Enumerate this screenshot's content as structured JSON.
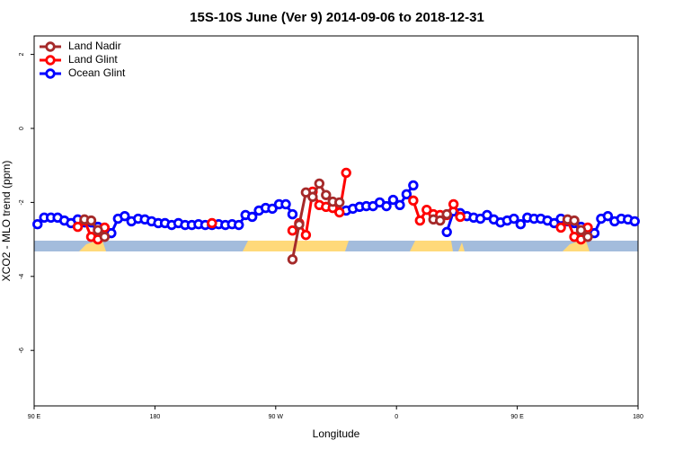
{
  "chart_data": {
    "type": "line",
    "title": "15S-10S June (Ver 9)   2014-09-06 to 2018-12-31",
    "x_label": "Longitude",
    "y_label": "XCO2 - MLO trend (ppm)",
    "xlim": [
      90,
      540
    ],
    "ylim": [
      -7.5,
      2.5
    ],
    "xticks": [
      {
        "value": 90,
        "label": "90 E"
      },
      180,
      {
        "value": 270,
        "label": "90 W"
      },
      {
        "value": 360,
        "label": "0"
      },
      {
        "value": 450,
        "label": "90 E"
      },
      {
        "value": 540,
        "label": "180"
      }
    ],
    "yticks": [
      -6,
      -4,
      -2,
      0,
      2
    ],
    "legend": "top-left",
    "x": [
      92.5,
      97.5,
      102.5,
      107.5,
      112.5,
      117.5,
      122.5,
      127.5,
      132.5,
      137.5,
      142.5,
      147.5,
      152.5,
      157.5,
      162.5,
      167.5,
      172.5,
      177.5,
      182.5,
      187.5,
      192.5,
      197.5,
      202.5,
      207.5,
      212.5,
      217.5,
      222.5,
      227.5,
      232.5,
      237.5,
      242.5,
      247.5,
      252.5,
      257.5,
      262.5,
      267.5,
      272.5,
      277.5,
      282.5,
      287.5,
      292.5,
      297.5,
      302.5,
      307.5,
      312.5,
      317.5,
      322.5,
      327.5,
      332.5,
      337.5,
      342.5,
      347.5,
      352.5,
      357.5,
      362.5,
      367.5,
      372.5,
      377.5,
      382.5,
      387.5,
      392.5,
      397.5,
      402.5,
      407.5,
      412.5,
      417.5,
      422.5,
      427.5,
      432.5,
      437.5,
      442.5,
      447.5,
      452.5,
      457.5,
      462.5,
      467.5,
      472.5,
      477.5,
      482.5,
      487.5,
      492.5,
      497.5,
      502.5,
      507.5,
      512.5,
      517.5,
      522.5,
      527.5,
      532.5,
      537.5
    ],
    "series": [
      {
        "name": "Land Nadir",
        "color": "#a52a2a",
        "values": [
          null,
          null,
          null,
          null,
          null,
          null,
          null,
          -2.46,
          -2.49,
          -2.75,
          -2.93,
          null,
          null,
          null,
          null,
          null,
          null,
          null,
          null,
          null,
          null,
          null,
          null,
          null,
          null,
          null,
          null,
          null,
          null,
          null,
          null,
          null,
          null,
          null,
          null,
          null,
          null,
          null,
          -3.54,
          -2.6,
          -1.73,
          -1.85,
          -1.49,
          -1.8,
          -1.98,
          -2.0,
          null,
          null,
          null,
          null,
          null,
          null,
          null,
          null,
          null,
          null,
          null,
          null,
          null,
          -2.46,
          -2.49,
          -2.32,
          null,
          null,
          null,
          null,
          null,
          null,
          null,
          null,
          null,
          null,
          null,
          null,
          null,
          null,
          null,
          null,
          null,
          -2.46,
          -2.49,
          -2.75,
          -2.93,
          null,
          null,
          null,
          null,
          null,
          null,
          null
        ]
      },
      {
        "name": "Land Glint",
        "color": "#ff0000",
        "values": [
          null,
          null,
          null,
          null,
          null,
          null,
          -2.66,
          -2.49,
          -2.93,
          -3.0,
          -2.68,
          null,
          null,
          null,
          null,
          null,
          null,
          null,
          null,
          null,
          null,
          null,
          null,
          null,
          null,
          null,
          -2.56,
          null,
          null,
          null,
          null,
          null,
          null,
          null,
          null,
          null,
          null,
          null,
          -2.76,
          -2.56,
          -2.88,
          -1.71,
          -2.07,
          -2.12,
          -2.15,
          -2.27,
          -1.2,
          null,
          null,
          null,
          null,
          null,
          null,
          null,
          null,
          null,
          -1.95,
          -2.49,
          -2.2,
          -2.32,
          -2.34,
          -2.34,
          -2.05,
          -2.39,
          null,
          null,
          null,
          null,
          null,
          null,
          null,
          null,
          null,
          null,
          null,
          null,
          null,
          null,
          -2.68,
          -2.49,
          -2.93,
          -3.0,
          -2.68,
          null,
          null,
          null,
          null,
          null,
          null,
          null
        ]
      },
      {
        "name": "Ocean Glint",
        "color": "#0000ff",
        "values": [
          -2.59,
          -2.41,
          -2.41,
          -2.41,
          -2.49,
          -2.56,
          -2.46,
          -2.54,
          -2.54,
          -2.66,
          -2.83,
          -2.83,
          -2.44,
          -2.37,
          -2.51,
          -2.44,
          -2.46,
          -2.51,
          -2.56,
          -2.56,
          -2.61,
          -2.56,
          -2.61,
          -2.61,
          -2.59,
          -2.61,
          -2.61,
          -2.59,
          -2.61,
          -2.59,
          -2.61,
          -2.34,
          -2.39,
          -2.22,
          -2.15,
          -2.17,
          -2.05,
          -2.05,
          -2.32,
          null,
          null,
          null,
          null,
          null,
          null,
          null,
          -2.22,
          -2.17,
          -2.12,
          -2.1,
          -2.1,
          -2.0,
          -2.1,
          -1.93,
          -2.07,
          -1.78,
          -1.54,
          null,
          null,
          null,
          null,
          -2.8,
          -2.24,
          -2.29,
          -2.37,
          -2.41,
          -2.44,
          -2.34,
          -2.46,
          -2.54,
          -2.49,
          -2.44,
          -2.59,
          -2.41,
          -2.44,
          -2.44,
          -2.49,
          -2.56,
          -2.44,
          -2.51,
          -2.56,
          -2.66,
          -2.83,
          -2.83,
          -2.44,
          -2.37,
          -2.51,
          -2.44,
          -2.46,
          -2.51
        ]
      }
    ]
  }
}
